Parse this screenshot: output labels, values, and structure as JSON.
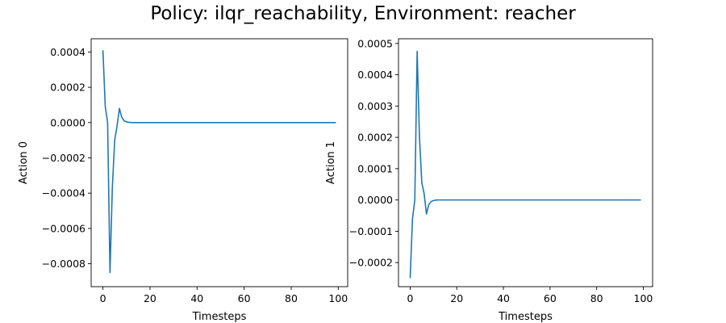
{
  "title": "Policy: ilqr_reachability, Environment: reacher",
  "chart_data": [
    {
      "type": "line",
      "xlabel": "Timesteps",
      "ylabel": "Action 0",
      "xlim": [
        -5,
        104
      ],
      "ylim": [
        -0.00093,
        0.000475
      ],
      "xticks": [
        0,
        20,
        40,
        60,
        80,
        100
      ],
      "xtick_labels": [
        "0",
        "20",
        "40",
        "60",
        "80",
        "100"
      ],
      "yticks": [
        -0.0008,
        -0.0006,
        -0.0004,
        -0.0002,
        0.0,
        0.0002,
        0.0004
      ],
      "ytick_labels": [
        "−0.0008",
        "−0.0006",
        "−0.0004",
        "−0.0002",
        "0.0000",
        "0.0002",
        "0.0004"
      ],
      "grid": false,
      "color": "#1f77b4",
      "series": [
        {
          "x": [
            0,
            1,
            2,
            3,
            4,
            5,
            6,
            7,
            8,
            9,
            10,
            11,
            12,
            13,
            14,
            15,
            20,
            30,
            40,
            50,
            60,
            70,
            80,
            90,
            99
          ],
          "y": [
            0.00041,
            9e-05,
            0.0,
            -0.00085,
            -0.00037,
            -0.0001,
            -2e-05,
            8e-05,
            3e-05,
            1e-05,
            4e-06,
            1.5e-06,
            5e-07,
            0.0,
            0.0,
            0.0,
            0.0,
            0.0,
            0.0,
            0.0,
            0.0,
            0.0,
            0.0,
            0.0,
            0.0
          ]
        }
      ]
    },
    {
      "type": "line",
      "xlabel": "Timesteps",
      "ylabel": "Action 1",
      "xlim": [
        -5,
        104
      ],
      "ylim": [
        -0.000277,
        0.000515
      ],
      "xticks": [
        0,
        20,
        40,
        60,
        80,
        100
      ],
      "xtick_labels": [
        "0",
        "20",
        "40",
        "60",
        "80",
        "100"
      ],
      "yticks": [
        -0.0002,
        -0.0001,
        0.0,
        0.0001,
        0.0002,
        0.0003,
        0.0004,
        0.0005
      ],
      "ytick_labels": [
        "−0.0002",
        "−0.0001",
        "0.0000",
        "0.0001",
        "0.0002",
        "0.0003",
        "0.0004",
        "0.0005"
      ],
      "grid": false,
      "color": "#1f77b4",
      "series": [
        {
          "x": [
            0,
            1,
            2,
            3,
            4,
            5,
            6,
            7,
            8,
            9,
            10,
            11,
            12,
            15,
            20,
            30,
            40,
            50,
            60,
            70,
            80,
            90,
            99
          ],
          "y": [
            -0.00025,
            -6e-05,
            0.0,
            0.000475,
            0.0002,
            5.5e-05,
            2e-05,
            -4.5e-05,
            -1.5e-05,
            -5e-06,
            -2e-06,
            -5e-07,
            0.0,
            0.0,
            0.0,
            0.0,
            0.0,
            0.0,
            0.0,
            0.0,
            0.0,
            0.0,
            0.0
          ]
        }
      ]
    }
  ]
}
